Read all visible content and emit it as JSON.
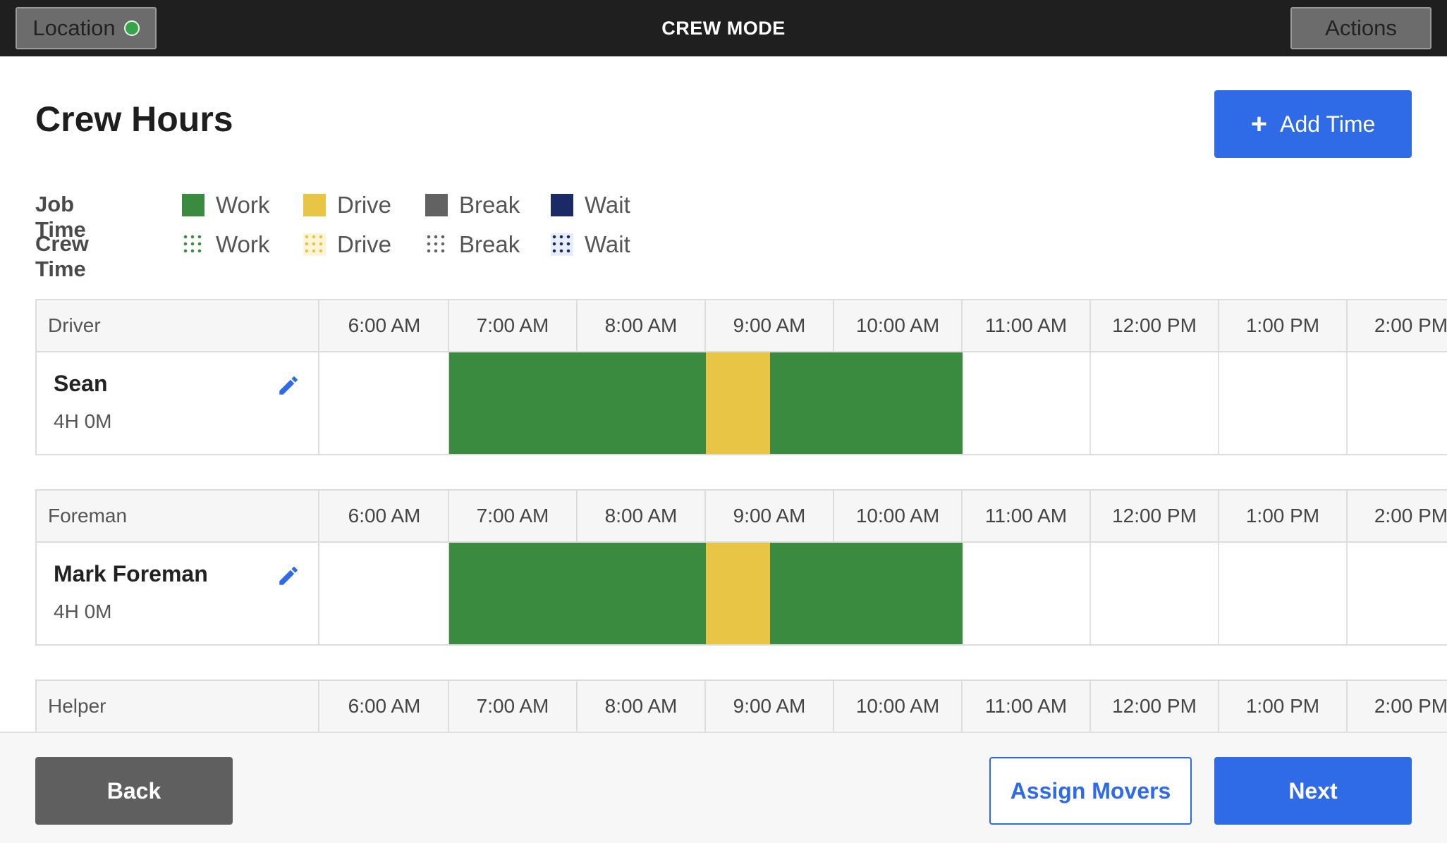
{
  "topbar": {
    "location_label": "Location",
    "title": "CREW MODE",
    "actions_label": "Actions",
    "location_status_color": "#37a34a"
  },
  "header": {
    "title": "Crew Hours",
    "add_time_label": "Add Time"
  },
  "legend": {
    "job_time_label": "Job Time",
    "crew_time_label": "Crew Time",
    "items": [
      {
        "label": "Work",
        "color": "#3a8a3f"
      },
      {
        "label": "Drive",
        "color": "#e8c545"
      },
      {
        "label": "Break",
        "color": "#626262"
      },
      {
        "label": "Wait",
        "color": "#1a2a66"
      }
    ]
  },
  "time_columns": [
    "6:00 AM",
    "7:00 AM",
    "8:00 AM",
    "9:00 AM",
    "10:00 AM",
    "11:00 AM",
    "12:00 PM",
    "1:00 PM",
    "2:00 PM"
  ],
  "crews": [
    {
      "role": "Driver",
      "name": "Sean",
      "hours": "4H 0M",
      "segments": [
        {
          "type": "work",
          "start_hour": 7.0,
          "end_hour": 9.0
        },
        {
          "type": "drive",
          "start_hour": 9.0,
          "end_hour": 9.5
        },
        {
          "type": "work",
          "start_hour": 9.5,
          "end_hour": 11.0
        }
      ]
    },
    {
      "role": "Foreman",
      "name": "Mark Foreman",
      "hours": "4H 0M",
      "segments": [
        {
          "type": "work",
          "start_hour": 7.0,
          "end_hour": 9.0
        },
        {
          "type": "drive",
          "start_hour": 9.0,
          "end_hour": 9.5
        },
        {
          "type": "work",
          "start_hour": 9.5,
          "end_hour": 11.0
        }
      ]
    },
    {
      "role": "Helper"
    }
  ],
  "footer": {
    "back_label": "Back",
    "assign_label": "Assign Movers",
    "next_label": "Next"
  }
}
